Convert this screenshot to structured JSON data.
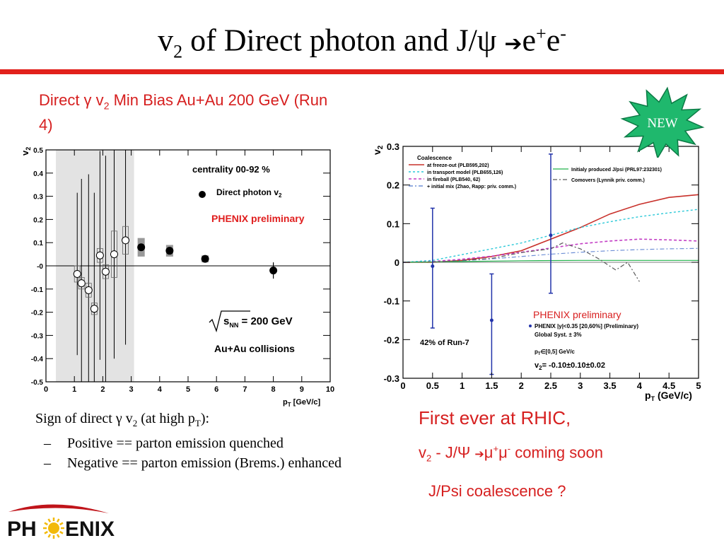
{
  "title": {
    "main_part1": "v",
    "main_sub": "2",
    "main_part2": " of Direct photon and J/ψ ",
    "arrow": "➔",
    "main_part3": "e",
    "sup_plus": "+",
    "main_part4": "e",
    "sup_minus": "-"
  },
  "left_heading": {
    "part1": "Direct γ v",
    "sub": "2",
    "part2": " Min Bias Au+Au 200 GeV (Run 4)"
  },
  "badge": {
    "text": "NEW",
    "color": "#1fb86d"
  },
  "bullets": {
    "main_part1": "Sign of direct γ v",
    "main_sub2": "2",
    "main_part2": " (at high p",
    "main_subT": "T",
    "main_part3": "):",
    "dash": "–",
    "item1": "Positive == parton emission quenched",
    "item2": "Negative == parton emission (Brems.) enhanced"
  },
  "right_notes": {
    "line1": "First ever at RHIC,",
    "line2_v": "v",
    "line2_sub": "2",
    "line2_mid": " - J/Ψ ",
    "line2_arrow": "➔",
    "line2_mu1": "μ",
    "line2_sup1": "+",
    "line2_mu2": "μ",
    "line2_sup2": "-",
    "line2_end": " coming soon",
    "line3": "J/Psi coalescence ?"
  },
  "logo": {
    "text_left": "PH",
    "text_right": "ENIX",
    "red": "#c0141a",
    "sun": "#f2b90a"
  },
  "chart_data": [
    {
      "type": "scatter",
      "xlabel_main": "p",
      "xlabel_sub": "T",
      "xlabel_unit": " [GeV/c]",
      "ylabel_main": "v",
      "ylabel_sub": "2",
      "xlim": [
        0,
        10
      ],
      "ylim": [
        -0.5,
        0.5
      ],
      "x_ticks": [
        "0",
        "1",
        "2",
        "3",
        "4",
        "5",
        "6",
        "7",
        "8",
        "9",
        "10"
      ],
      "y_ticks": [
        "-0.5",
        "-0.4",
        "-0.3",
        "-0.2",
        "-0.1",
        "-0",
        "0.1",
        "0.2",
        "0.3",
        "0.4",
        "0.5"
      ],
      "shaded_x": [
        0.35,
        3.1
      ],
      "annotations": {
        "centrality": "centrality 00-92 %",
        "legend_label": "Direct photon v",
        "legend_sub": "2",
        "preliminary": "PHENIX preliminary",
        "sqrt_s": "s",
        "sqrt_sub": "NN",
        "energy": " = 200 GeV",
        "system": "Au+Au collisions"
      },
      "series": [
        {
          "name": "Direct photon v2",
          "marker": "filled",
          "points": [
            {
              "x": 3.35,
              "y": 0.08,
              "err": 0.01,
              "sys": 0.08
            },
            {
              "x": 4.35,
              "y": 0.065,
              "err": 0.01,
              "sys": 0.05
            },
            {
              "x": 5.6,
              "y": 0.03,
              "err": 0.015,
              "sys": 0.03
            },
            {
              "x": 8.0,
              "y": -0.02,
              "err": 0.035,
              "sys": 0.01
            }
          ]
        },
        {
          "marker": "open",
          "points": [
            {
              "x": 1.1,
              "y": -0.035,
              "err": 0.35,
              "sys": 0.07
            },
            {
              "x": 1.25,
              "y": -0.075,
              "err": 0.45,
              "sys": 0.05
            },
            {
              "x": 1.5,
              "y": -0.105,
              "err": 0.5,
              "sys": 0.06
            },
            {
              "x": 1.7,
              "y": -0.185,
              "err": 0.5,
              "sys": 0.05
            },
            {
              "x": 1.9,
              "y": 0.045,
              "err": 0.45,
              "sys": 0.06
            },
            {
              "x": 2.1,
              "y": -0.025,
              "err": 0.5,
              "sys": 0.06
            },
            {
              "x": 2.4,
              "y": 0.05,
              "err": 0.45,
              "sys": 0.2
            },
            {
              "x": 2.8,
              "y": 0.11,
              "err": 0.45,
              "sys": 0.12
            }
          ]
        }
      ]
    },
    {
      "type": "line",
      "xlabel_main": "p",
      "xlabel_sub": "T",
      "xlabel_unit": " (GeV/c)",
      "ylabel_main": "v",
      "ylabel_sub": "2",
      "xlim": [
        0,
        5
      ],
      "ylim": [
        -0.3,
        0.3
      ],
      "x_ticks": [
        "0",
        "0.5",
        "1",
        "1.5",
        "2",
        "2.5",
        "3",
        "3.5",
        "4",
        "4.5",
        "5"
      ],
      "y_ticks": [
        "-0.3",
        "-0.2",
        "-0.1",
        "0",
        "0.1",
        "0.2",
        "0.3"
      ],
      "legend": {
        "header": "Coalescence",
        "entries_left": [
          "at freeze-out (PLB595,202)",
          "in transport model (PLB655,126)",
          "in fireball (PLB540, 62)",
          "+ initial mix (Zhao, Rapp: priv. comm.)"
        ],
        "entries_right": [
          "Initialy produced J/psi (PRL97:232301)",
          "Comovers (Lynnik priv. comm.)"
        ],
        "phenix_entry": "PHENIX |y|<0.35 [20,60%] (Preliminary)",
        "global_syst": "Global Syst. ± 3%"
      },
      "annotations": {
        "run_fraction": "42% of Run-7",
        "pt_range": "p",
        "pt_range_sub": "T",
        "pt_range_rest": "∈[0,5] GeV/c",
        "v2_value": "v",
        "v2_value_sub": "2",
        "v2_value_rest": "= -0.10±0.10±0.02",
        "preliminary": "PHENIX preliminary"
      },
      "curve_colors": [
        "#c8302a",
        "#2cc9d8",
        "#c23cc4",
        "#6e8fd6",
        "#22b24c",
        "#5a5a5a"
      ],
      "curves": [
        {
          "name": "at freeze-out (PLB595,202)",
          "x": [
            0,
            0.5,
            1,
            1.5,
            2,
            2.5,
            3,
            3.5,
            4,
            4.5,
            5
          ],
          "y": [
            0,
            0,
            0.005,
            0.015,
            0.03,
            0.06,
            0.09,
            0.125,
            0.15,
            0.168,
            0.175
          ]
        },
        {
          "name": "in transport model (PLB655,126)",
          "x": [
            0,
            0.5,
            1,
            1.5,
            2,
            2.5,
            3,
            3.5,
            4,
            4.5,
            5
          ],
          "y": [
            0,
            0.005,
            0.02,
            0.035,
            0.05,
            0.07,
            0.09,
            0.105,
            0.118,
            0.128,
            0.137
          ]
        },
        {
          "name": "in fireball (PLB540, 62)",
          "x": [
            0,
            0.5,
            1,
            1.5,
            2,
            2.5,
            3,
            3.5,
            4,
            4.5,
            5
          ],
          "y": [
            0,
            0.002,
            0.008,
            0.016,
            0.026,
            0.037,
            0.048,
            0.055,
            0.06,
            0.058,
            0.055
          ]
        },
        {
          "name": "+ initial mix (Zhao, Rapp: priv. comm.)",
          "x": [
            0,
            0.5,
            1,
            1.5,
            2,
            2.5,
            3,
            3.5,
            4,
            4.5,
            5
          ],
          "y": [
            0,
            0.001,
            0.004,
            0.009,
            0.015,
            0.021,
            0.026,
            0.03,
            0.033,
            0.035,
            0.036
          ]
        },
        {
          "name": "Initialy produced J/psi (PRL97:232301)",
          "x": [
            0,
            1,
            2,
            3,
            4,
            5
          ],
          "y": [
            0,
            0.002,
            0.004,
            0.005,
            0.005,
            0.005
          ]
        },
        {
          "name": "Comovers (Lynnik priv. comm.)",
          "x": [
            0.5,
            1,
            1.5,
            2,
            2.5,
            2.7,
            3,
            3.3,
            3.6,
            3.8,
            4
          ],
          "y": [
            0,
            0.005,
            0.01,
            0.025,
            0.035,
            0.05,
            0.035,
            0.01,
            -0.02,
            0,
            -0.05
          ]
        }
      ],
      "points": [
        {
          "x": 0.5,
          "y": -0.01,
          "err_lo": 0.16,
          "err_hi": 0.15
        },
        {
          "x": 1.5,
          "y": -0.15,
          "err_lo": 0.14,
          "err_hi": 0.12
        },
        {
          "x": 2.5,
          "y": 0.07,
          "err_lo": 0.15,
          "err_hi": 0.21
        }
      ]
    }
  ]
}
